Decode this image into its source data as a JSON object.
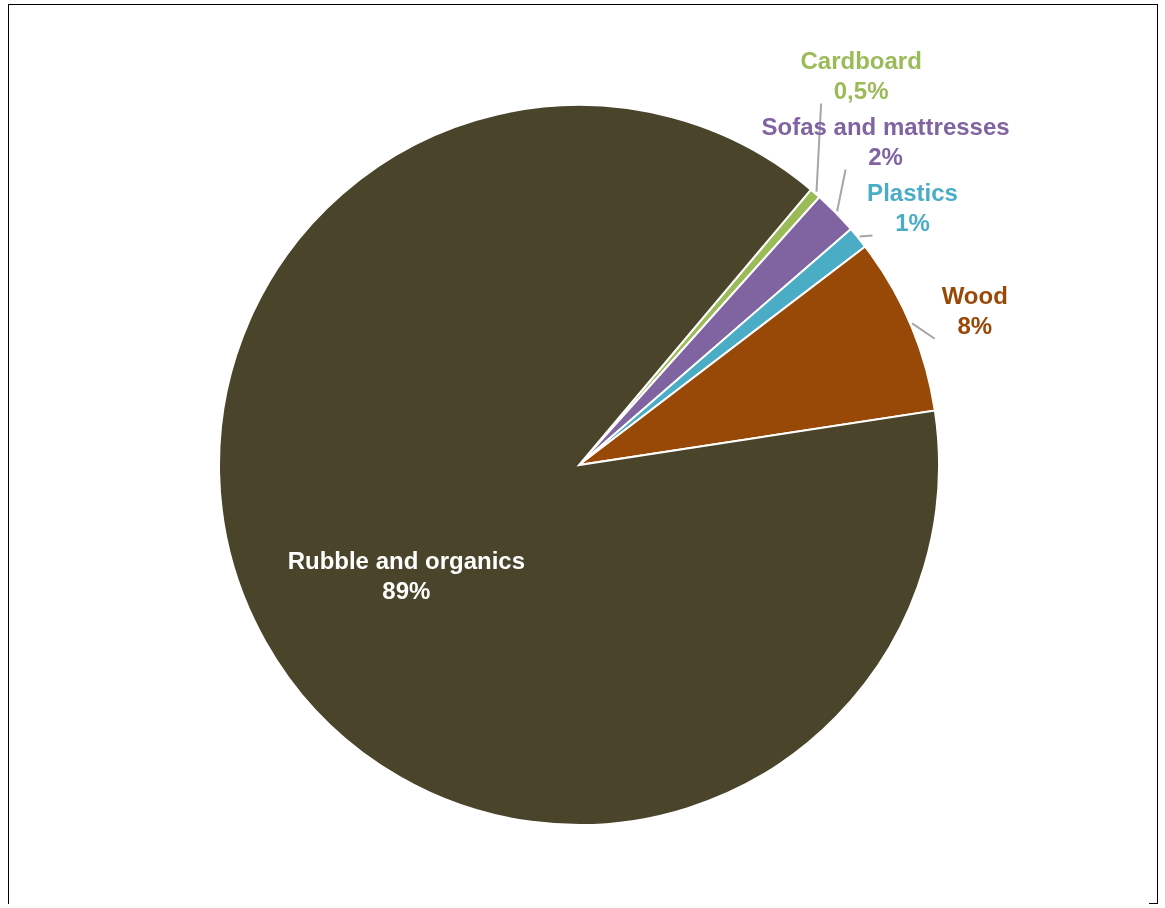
{
  "chart_data": {
    "type": "pie",
    "categories": [
      "Cardboard",
      "Sofas and mattresses",
      "Plastics",
      "Wood",
      "Rubble and organics"
    ],
    "values": [
      0.5,
      2,
      1,
      8,
      89
    ],
    "value_labels": [
      "0,5%",
      "2%",
      "1%",
      "8%",
      "89%"
    ],
    "colors": [
      "#9bbb59",
      "#8064a2",
      "#4bacc6",
      "#984807",
      "#4a442a"
    ]
  }
}
